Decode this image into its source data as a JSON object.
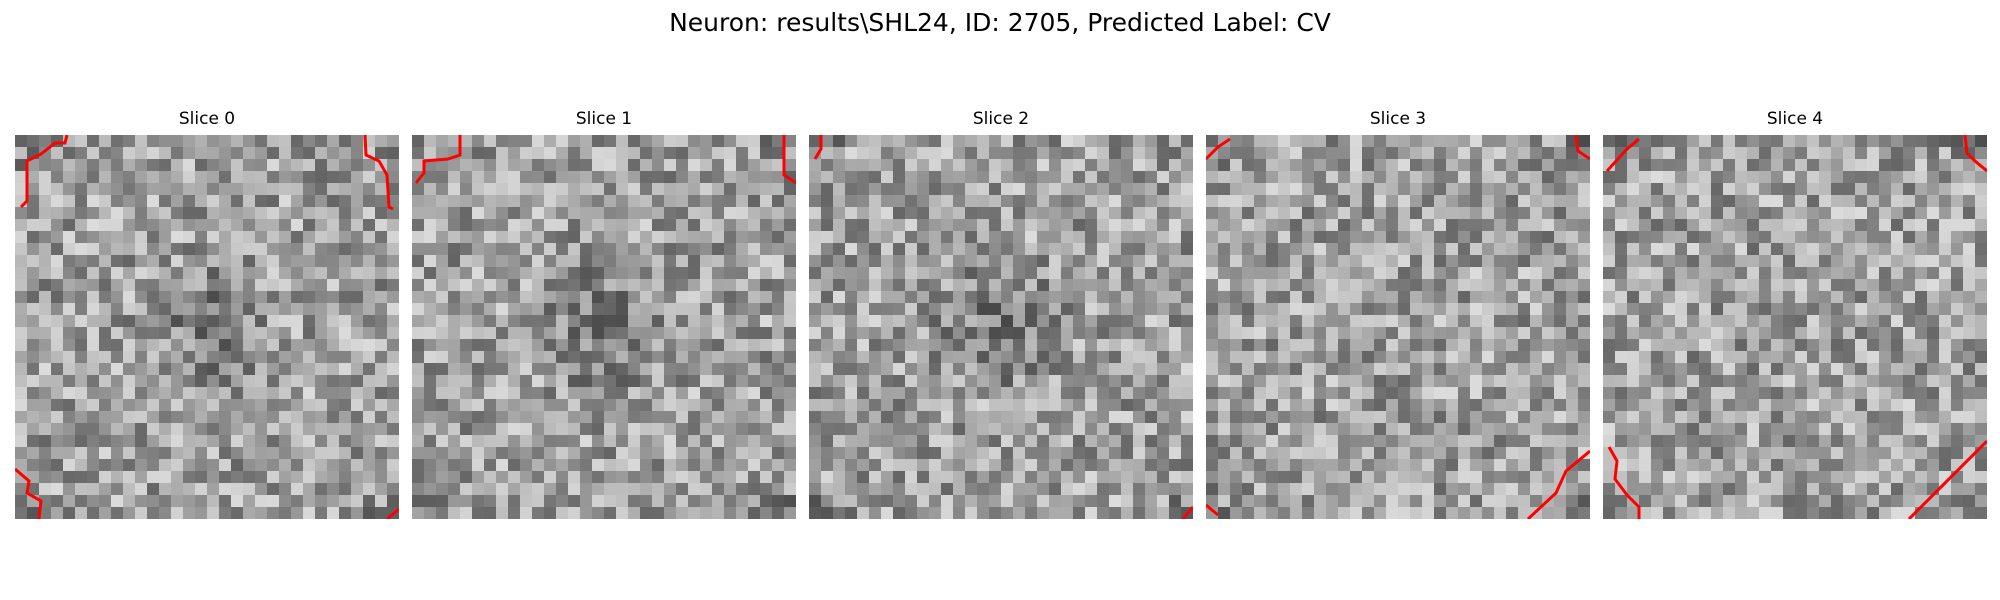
{
  "figure": {
    "title": "Neuron: results\\SHL24, ID: 2705, Predicted Label: CV",
    "colormap": "gray",
    "contour_color": "#ff0000"
  },
  "slices": [
    {
      "title": "Slice 0",
      "seed": 11,
      "dark_center": true
    },
    {
      "title": "Slice 1",
      "seed": 29,
      "dark_center": true
    },
    {
      "title": "Slice 2",
      "seed": 47,
      "dark_center": true
    },
    {
      "title": "Slice 3",
      "seed": 71,
      "dark_center": false
    },
    {
      "title": "Slice 4",
      "seed": 97,
      "dark_center": false
    }
  ]
}
